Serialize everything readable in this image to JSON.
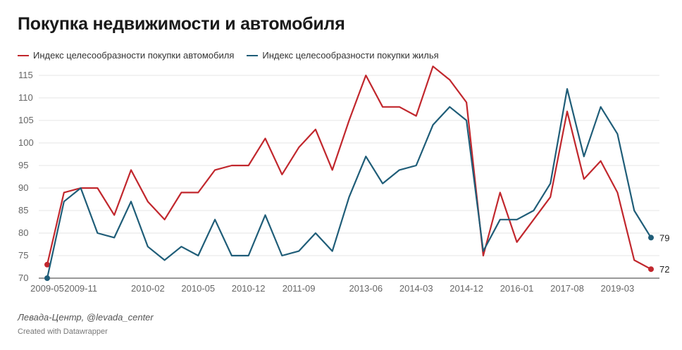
{
  "title": "Покупка недвижимости и автомобиля",
  "source": "Левада-Центр, @levada_center",
  "credit": "Created with Datawrapper",
  "chart_data": {
    "type": "line",
    "title": "Покупка недвижимости и автомобиля",
    "xlabel": "",
    "ylabel": "",
    "ylim": [
      70,
      115
    ],
    "yticks": [
      70,
      75,
      80,
      85,
      90,
      95,
      100,
      105,
      110,
      115
    ],
    "grid": true,
    "legend": "top-left",
    "x_tick_labels": [
      "2009-05",
      "2009-11",
      "2010-02",
      "2010-05",
      "2010-12",
      "2011-09",
      "2013-06",
      "2014-03",
      "2014-12",
      "2016-01",
      "2017-08",
      "2019-03"
    ],
    "x_tick_indices": [
      0,
      2,
      6,
      9,
      12,
      15,
      19,
      22,
      25,
      28,
      31,
      34
    ],
    "series": [
      {
        "name": "Индекс целесообразности покупки автомобиля",
        "color": "#c1272d",
        "values": [
          73,
          89,
          90,
          90,
          84,
          94,
          87,
          83,
          89,
          89,
          94,
          95,
          95,
          101,
          93,
          99,
          103,
          94,
          105,
          115,
          108,
          108,
          106,
          117,
          114,
          109,
          75,
          89,
          78,
          83,
          88,
          107,
          92,
          96,
          89,
          74,
          72
        ],
        "end_label": "72"
      },
      {
        "name": "Индекс целесообразности покупки жилья",
        "color": "#1f5d78",
        "values": [
          70,
          87,
          90,
          80,
          79,
          87,
          77,
          74,
          77,
          75,
          83,
          75,
          75,
          84,
          75,
          76,
          80,
          76,
          88,
          97,
          91,
          94,
          95,
          104,
          108,
          105,
          76,
          83,
          83,
          85,
          91,
          112,
          97,
          108,
          102,
          85,
          79
        ],
        "end_label": "79"
      }
    ]
  }
}
